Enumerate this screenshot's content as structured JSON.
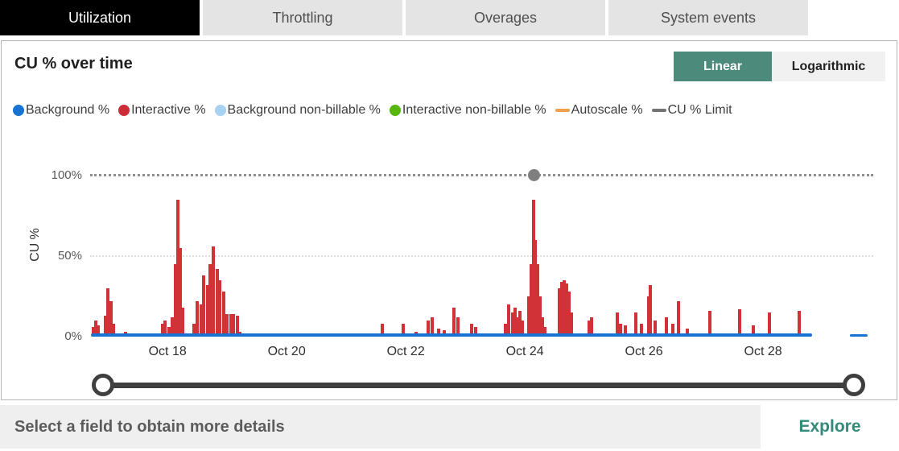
{
  "tabs": [
    {
      "label": "Utilization",
      "active": true
    },
    {
      "label": "Throttling",
      "active": false
    },
    {
      "label": "Overages",
      "active": false
    },
    {
      "label": "System events",
      "active": false
    }
  ],
  "card": {
    "title": "CU % over time",
    "scale_toggle": {
      "linear_label": "Linear",
      "log_label": "Logarithmic",
      "selected": "Linear"
    }
  },
  "legend": [
    {
      "label": "Background %",
      "color": "#1673d3",
      "shape": "circle"
    },
    {
      "label": "Interactive %",
      "color": "#cc2d37",
      "shape": "circle"
    },
    {
      "label": "Background non-billable %",
      "color": "#a8d2f2",
      "shape": "circle"
    },
    {
      "label": "Interactive non-billable %",
      "color": "#57b70e",
      "shape": "circle"
    },
    {
      "label": "Autoscale %",
      "color": "#f1a14c",
      "shape": "line"
    },
    {
      "label": "CU % Limit",
      "color": "#737373",
      "shape": "line"
    }
  ],
  "footer": {
    "message": "Select a field to obtain more details",
    "explore_label": "Explore"
  },
  "chart_data": {
    "type": "bar",
    "title": "CU % over time",
    "xlabel": "",
    "ylabel": "CU %",
    "ylim": [
      0,
      100
    ],
    "x_range": [
      16.7,
      29.85
    ],
    "grid": "dotted-horizontal",
    "legend_position": "top",
    "y_ticks": [
      {
        "v": 0,
        "label": "0%"
      },
      {
        "v": 50,
        "label": "50%"
      },
      {
        "v": 100,
        "label": "100%"
      }
    ],
    "x_ticks": [
      {
        "t": 18,
        "label": "Oct 18"
      },
      {
        "t": 20,
        "label": "Oct 20"
      },
      {
        "t": 22,
        "label": "Oct 22"
      },
      {
        "t": 24,
        "label": "Oct 24"
      },
      {
        "t": 26,
        "label": "Oct 26"
      },
      {
        "t": 28,
        "label": "Oct 28"
      }
    ],
    "series": [
      {
        "name": "Interactive %",
        "type": "bars",
        "color": "#d03238",
        "points": [
          [
            16.76,
            6
          ],
          [
            16.8,
            10
          ],
          [
            16.84,
            7
          ],
          [
            16.96,
            13
          ],
          [
            17.0,
            30
          ],
          [
            17.05,
            22
          ],
          [
            17.09,
            8
          ],
          [
            17.3,
            3
          ],
          [
            17.91,
            8
          ],
          [
            17.96,
            10
          ],
          [
            18.02,
            6
          ],
          [
            18.08,
            12
          ],
          [
            18.13,
            45
          ],
          [
            18.17,
            85
          ],
          [
            18.21,
            55
          ],
          [
            18.25,
            18
          ],
          [
            18.45,
            8
          ],
          [
            18.5,
            22
          ],
          [
            18.56,
            20
          ],
          [
            18.61,
            38
          ],
          [
            18.67,
            32
          ],
          [
            18.72,
            45
          ],
          [
            18.77,
            56
          ],
          [
            18.83,
            42
          ],
          [
            18.88,
            35
          ],
          [
            18.94,
            28
          ],
          [
            19.0,
            14
          ],
          [
            19.06,
            14
          ],
          [
            19.11,
            14
          ],
          [
            19.17,
            13
          ],
          [
            19.22,
            3
          ],
          [
            21.6,
            8
          ],
          [
            21.96,
            8
          ],
          [
            22.18,
            3
          ],
          [
            22.38,
            10
          ],
          [
            22.44,
            12
          ],
          [
            22.55,
            5
          ],
          [
            22.64,
            4
          ],
          [
            22.81,
            18
          ],
          [
            22.87,
            12
          ],
          [
            23.1,
            8
          ],
          [
            23.18,
            6
          ],
          [
            23.68,
            8
          ],
          [
            23.73,
            20
          ],
          [
            23.79,
            15
          ],
          [
            23.83,
            18
          ],
          [
            23.87,
            12
          ],
          [
            23.92,
            16
          ],
          [
            23.96,
            10
          ],
          [
            24.06,
            25
          ],
          [
            24.1,
            45
          ],
          [
            24.14,
            85
          ],
          [
            24.18,
            60
          ],
          [
            24.22,
            45
          ],
          [
            24.26,
            25
          ],
          [
            24.3,
            12
          ],
          [
            24.34,
            6
          ],
          [
            24.58,
            30
          ],
          [
            24.62,
            34
          ],
          [
            24.66,
            35
          ],
          [
            24.7,
            33
          ],
          [
            24.74,
            28
          ],
          [
            24.78,
            15
          ],
          [
            25.08,
            10
          ],
          [
            25.12,
            12
          ],
          [
            25.55,
            15
          ],
          [
            25.61,
            8
          ],
          [
            25.69,
            7
          ],
          [
            25.86,
            15
          ],
          [
            25.96,
            8
          ],
          [
            26.08,
            25
          ],
          [
            26.11,
            32
          ],
          [
            26.19,
            10
          ],
          [
            26.37,
            12
          ],
          [
            26.49,
            8
          ],
          [
            26.58,
            22
          ],
          [
            26.73,
            5
          ],
          [
            27.1,
            16
          ],
          [
            27.6,
            17
          ],
          [
            27.84,
            7
          ],
          [
            28.11,
            15
          ],
          [
            28.6,
            16
          ],
          [
            28.76,
            2
          ]
        ]
      },
      {
        "name": "Background %",
        "type": "line-segments",
        "color": "#1673d3",
        "segments": [
          {
            "from": 16.72,
            "to": 28.82,
            "value": 2
          },
          {
            "from": 29.46,
            "to": 29.75,
            "value": 1
          }
        ]
      },
      {
        "name": "Background non-billable %",
        "type": "bars",
        "color": "#a8d2f2",
        "points": []
      },
      {
        "name": "Interactive non-billable %",
        "type": "bars",
        "color": "#57b70e",
        "points": []
      },
      {
        "name": "Autoscale %",
        "type": "line",
        "color": "#f1a14c",
        "points": []
      },
      {
        "name": "CU % Limit",
        "type": "limit-line",
        "color": "#8f8f8f",
        "value": 100,
        "marker_t": 24.15
      }
    ]
  }
}
